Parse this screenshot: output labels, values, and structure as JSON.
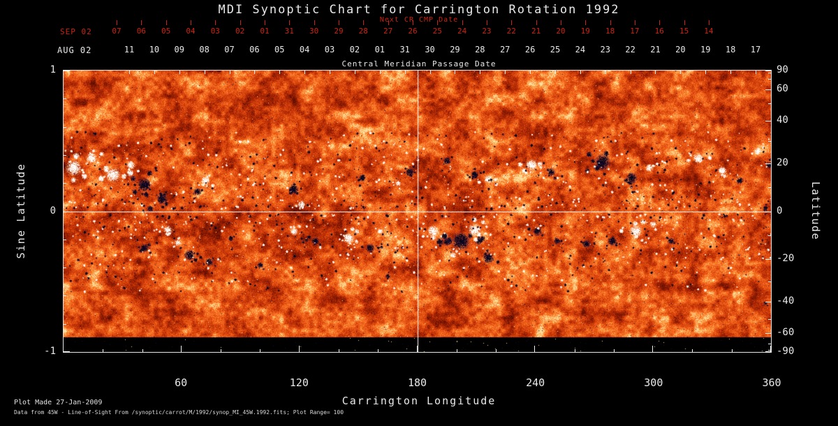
{
  "title": "MDI Synoptic Chart for Carrington Rotation 1992",
  "colors": {
    "background": "#000000",
    "axis_red": "#cc2211",
    "axis_white": "#e8e8e8",
    "magnetogram_base": "#e05014",
    "positive_field": "#fff8e8",
    "negative_field": "#0a0820"
  },
  "top_axis": {
    "label": "Next CR CMP Date",
    "month_label": "SEP 02",
    "dates": [
      "07",
      "06",
      "05",
      "04",
      "03",
      "02",
      "01",
      "31",
      "30",
      "29",
      "28",
      "27",
      "26",
      "25",
      "24",
      "23",
      "22",
      "21",
      "20",
      "19",
      "18",
      "17",
      "16",
      "15",
      "14"
    ]
  },
  "cmp_axis": {
    "month_label": "AUG 02",
    "title": "Central Meridian Passage Date",
    "dates": [
      "11",
      "10",
      "09",
      "08",
      "07",
      "06",
      "05",
      "04",
      "03",
      "02",
      "01",
      "31",
      "30",
      "29",
      "28",
      "27",
      "26",
      "25",
      "24",
      "23",
      "22",
      "21",
      "20",
      "19",
      "18",
      "17"
    ]
  },
  "left_axis": {
    "title": "Sine Latitude",
    "ticks": [
      {
        "label": "1",
        "value": 1
      },
      {
        "label": "0",
        "value": 0
      },
      {
        "label": "-1",
        "value": -1
      }
    ]
  },
  "right_axis": {
    "title": "Latitude",
    "ticks": [
      90,
      60,
      40,
      20,
      0,
      -20,
      -40,
      -60,
      -90
    ],
    "minor_ticks": [
      80,
      70,
      50,
      30,
      10,
      -10,
      -30,
      -50,
      -70,
      -80
    ]
  },
  "bottom_axis": {
    "title": "Carrington Longitude",
    "ticks": [
      60,
      120,
      180,
      240,
      300,
      360
    ],
    "minor_step": 20
  },
  "footer": {
    "line1": "Plot Made 27-Jan-2009",
    "line2": "Data from 45W - Line-of-Sight From /synoptic/carrot/M/1992/synop_MI_45W.1992.fits; Plot Range=  100"
  },
  "chart_data": {
    "type": "heatmap",
    "title": "MDI Synoptic Chart for Carrington Rotation 1992",
    "xlabel": "Carrington Longitude",
    "x_range": [
      0,
      360
    ],
    "ylabel_left": "Sine Latitude",
    "y_range": [
      -1,
      1
    ],
    "ylabel_right": "Latitude",
    "colormap": "red-orange line-of-sight magnetogram; white = positive magnetic field, dark navy/black = negative magnetic field",
    "plot_range": 100,
    "grid": {
      "crosshair_longitude": 180,
      "crosshair_sine_latitude": 0,
      "color": "#ffffff"
    },
    "active_regions": [
      {
        "lon": 5,
        "slat": 0.31,
        "pol": "pos",
        "r": 16
      },
      {
        "lon": 14,
        "slat": 0.38,
        "pol": "pos",
        "r": 11
      },
      {
        "lon": 25,
        "slat": 0.26,
        "pol": "pos",
        "r": 15
      },
      {
        "lon": 34,
        "slat": 0.33,
        "pol": "pos",
        "r": 9
      },
      {
        "lon": 41,
        "slat": 0.19,
        "pol": "neg",
        "r": 14
      },
      {
        "lon": 50,
        "slat": 0.09,
        "pol": "neg",
        "r": 11
      },
      {
        "lon": 44,
        "slat": 0.02,
        "pol": "neg",
        "r": 7
      },
      {
        "lon": 72,
        "slat": 0.22,
        "pol": "pos",
        "r": 9
      },
      {
        "lon": 68,
        "slat": 0.14,
        "pol": "neg",
        "r": 8
      },
      {
        "lon": 117,
        "slat": 0.16,
        "pol": "neg",
        "r": 10
      },
      {
        "lon": 121,
        "slat": 0.05,
        "pol": "pos",
        "r": 8
      },
      {
        "lon": 152,
        "slat": 0.24,
        "pol": "neg",
        "r": 7
      },
      {
        "lon": 176,
        "slat": 0.28,
        "pol": "neg",
        "r": 9
      },
      {
        "lon": 170,
        "slat": 0.2,
        "pol": "pos",
        "r": 6
      },
      {
        "lon": 195,
        "slat": 0.36,
        "pol": "neg",
        "r": 8
      },
      {
        "lon": 209,
        "slat": 0.26,
        "pol": "neg",
        "r": 8
      },
      {
        "lon": 216,
        "slat": 0.23,
        "pol": "pos",
        "r": 9
      },
      {
        "lon": 238,
        "slat": 0.33,
        "pol": "pos",
        "r": 12
      },
      {
        "lon": 248,
        "slat": 0.28,
        "pol": "neg",
        "r": 8
      },
      {
        "lon": 274,
        "slat": 0.35,
        "pol": "neg",
        "r": 16
      },
      {
        "lon": 289,
        "slat": 0.24,
        "pol": "neg",
        "r": 11
      },
      {
        "lon": 298,
        "slat": 0.31,
        "pol": "pos",
        "r": 8
      },
      {
        "lon": 323,
        "slat": 0.38,
        "pol": "pos",
        "r": 11
      },
      {
        "lon": 335,
        "slat": 0.29,
        "pol": "pos",
        "r": 9
      },
      {
        "lon": 344,
        "slat": 0.22,
        "pol": "neg",
        "r": 7
      },
      {
        "lon": 353,
        "slat": 0.43,
        "pol": "pos",
        "r": 8
      },
      {
        "lon": 359,
        "slat": 0.33,
        "pol": "neg",
        "r": 7
      },
      {
        "lon": 357,
        "slat": 0.02,
        "pol": "neg",
        "r": 6
      },
      {
        "lon": 41,
        "slat": -0.26,
        "pol": "neg",
        "r": 9
      },
      {
        "lon": 53,
        "slat": -0.13,
        "pol": "pos",
        "r": 9
      },
      {
        "lon": 58,
        "slat": -0.22,
        "pol": "pos",
        "r": 7
      },
      {
        "lon": 64,
        "slat": -0.31,
        "pol": "neg",
        "r": 11
      },
      {
        "lon": 74,
        "slat": -0.36,
        "pol": "neg",
        "r": 8
      },
      {
        "lon": 85,
        "slat": -0.19,
        "pol": "neg",
        "r": 6
      },
      {
        "lon": 100,
        "slat": -0.38,
        "pol": "neg",
        "r": 6
      },
      {
        "lon": 117,
        "slat": -0.14,
        "pol": "pos",
        "r": 8
      },
      {
        "lon": 128,
        "slat": -0.21,
        "pol": "neg",
        "r": 8
      },
      {
        "lon": 145,
        "slat": -0.19,
        "pol": "pos",
        "r": 11
      },
      {
        "lon": 156,
        "slat": -0.26,
        "pol": "neg",
        "r": 9
      },
      {
        "lon": 161,
        "slat": -0.14,
        "pol": "pos",
        "r": 6
      },
      {
        "lon": 165,
        "slat": -0.46,
        "pol": "neg",
        "r": 5
      },
      {
        "lon": 188,
        "slat": -0.14,
        "pol": "pos",
        "r": 12
      },
      {
        "lon": 202,
        "slat": -0.21,
        "pol": "neg",
        "r": 18
      },
      {
        "lon": 209,
        "slat": -0.13,
        "pol": "pos",
        "r": 13
      },
      {
        "lon": 216,
        "slat": -0.33,
        "pol": "neg",
        "r": 11
      },
      {
        "lon": 198,
        "slat": -0.31,
        "pol": "pos",
        "r": 7
      },
      {
        "lon": 241,
        "slat": -0.14,
        "pol": "neg",
        "r": 9
      },
      {
        "lon": 251,
        "slat": -0.21,
        "pol": "neg",
        "r": 7
      },
      {
        "lon": 266,
        "slat": -0.23,
        "pol": "neg",
        "r": 8
      },
      {
        "lon": 279,
        "slat": -0.21,
        "pol": "neg",
        "r": 9
      },
      {
        "lon": 291,
        "slat": -0.14,
        "pol": "pos",
        "r": 13
      },
      {
        "lon": 300,
        "slat": -0.09,
        "pol": "pos",
        "r": 7
      },
      {
        "lon": 309,
        "slat": -0.21,
        "pol": "neg",
        "r": 7
      },
      {
        "lon": 357,
        "slat": -0.65,
        "pol": "neg",
        "r": 4
      }
    ]
  }
}
